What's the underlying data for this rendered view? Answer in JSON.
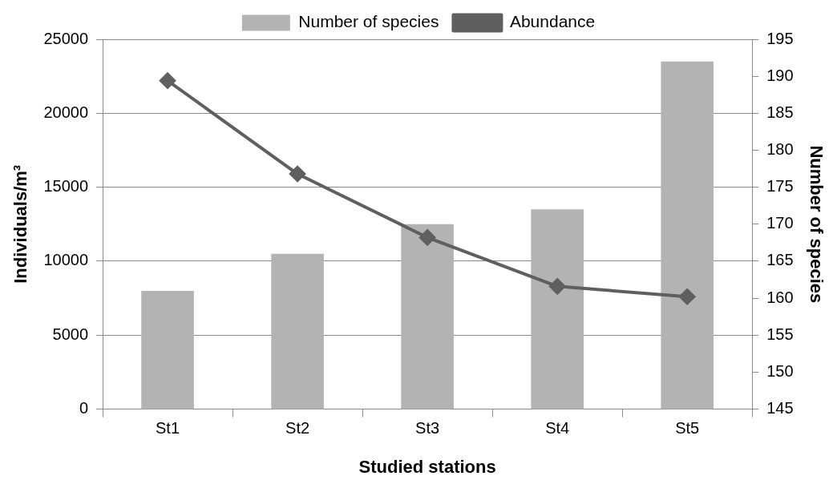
{
  "chart_data": {
    "type": "bar",
    "xlabel": "Studied stations",
    "ylabel": "Individuals/m³",
    "y2label": "Number of species",
    "categories": [
      "St1",
      "St2",
      "St3",
      "St4",
      "St5"
    ],
    "series": [
      {
        "name": "Number of species",
        "axis": "y2",
        "color": "#b3b3b3",
        "values": [
          161,
          166,
          170,
          172,
          192
        ]
      },
      {
        "name": "Abundance",
        "type": "line",
        "color": "#5f5f5f",
        "marker": "diamond",
        "line_style": "solid",
        "values": [
          22200,
          15900,
          11600,
          8300,
          7600
        ]
      }
    ],
    "ylim": [
      0,
      25000
    ],
    "yticks": [
      0,
      5000,
      10000,
      15000,
      20000,
      25000
    ],
    "y2lim": [
      145,
      195
    ],
    "y2ticks": [
      145,
      150,
      155,
      160,
      165,
      170,
      175,
      180,
      185,
      190,
      195
    ],
    "grid": "y",
    "legend": "top"
  }
}
